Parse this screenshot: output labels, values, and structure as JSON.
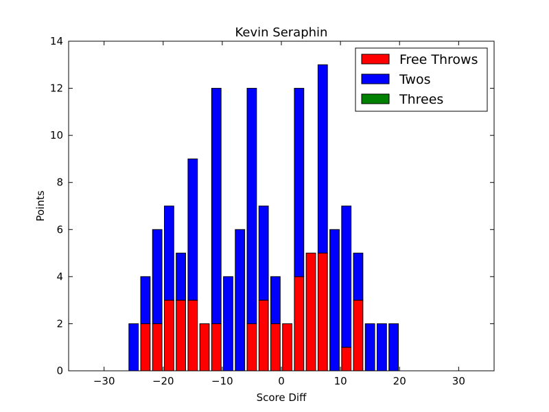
{
  "chart_data": {
    "type": "bar",
    "title": "Kevin Seraphin",
    "xlabel": "Score Diff",
    "ylabel": "Points",
    "xlim": [
      -36,
      36
    ],
    "ylim": [
      0,
      14
    ],
    "xticks": [
      -30,
      -20,
      -10,
      0,
      10,
      20,
      30
    ],
    "yticks": [
      0,
      2,
      4,
      6,
      8,
      10,
      12,
      14
    ],
    "bar_width": 1.6,
    "stacked": true,
    "legend_position": "top-right",
    "x": [
      -35,
      -33,
      -31,
      -29,
      -27,
      -25,
      -23,
      -21,
      -19,
      -17,
      -15,
      -13,
      -11,
      -9,
      -7,
      -5,
      -3,
      -1,
      1,
      3,
      5,
      7,
      9,
      11,
      13,
      15,
      17,
      19,
      21,
      23,
      25,
      27,
      29,
      31,
      33,
      35
    ],
    "series": [
      {
        "name": "Free Throws",
        "color": "#ff0000",
        "values": [
          0,
          0,
          0,
          0,
          0,
          0,
          2,
          2,
          3,
          3,
          3,
          2,
          2,
          0,
          0,
          2,
          3,
          2,
          2,
          4,
          5,
          5,
          0,
          1,
          3,
          0,
          0,
          0,
          0,
          0,
          0,
          0,
          0,
          0,
          0,
          0
        ]
      },
      {
        "name": "Twos",
        "color": "#0000ff",
        "values": [
          0,
          0,
          0,
          0,
          0,
          2,
          2,
          4,
          4,
          2,
          6,
          0,
          10,
          4,
          6,
          10,
          4,
          2,
          0,
          8,
          0,
          8,
          6,
          6,
          2,
          2,
          2,
          2,
          0,
          0,
          0,
          0,
          0,
          0,
          0,
          0
        ]
      },
      {
        "name": "Threes",
        "color": "#008000",
        "values": [
          0,
          0,
          0,
          0,
          0,
          0,
          0,
          0,
          0,
          0,
          0,
          0,
          0,
          0,
          0,
          0,
          0,
          0,
          0,
          0,
          0,
          0,
          0,
          0,
          0,
          0,
          0,
          0,
          0,
          0,
          0,
          0,
          0,
          0,
          0,
          0
        ]
      }
    ]
  }
}
